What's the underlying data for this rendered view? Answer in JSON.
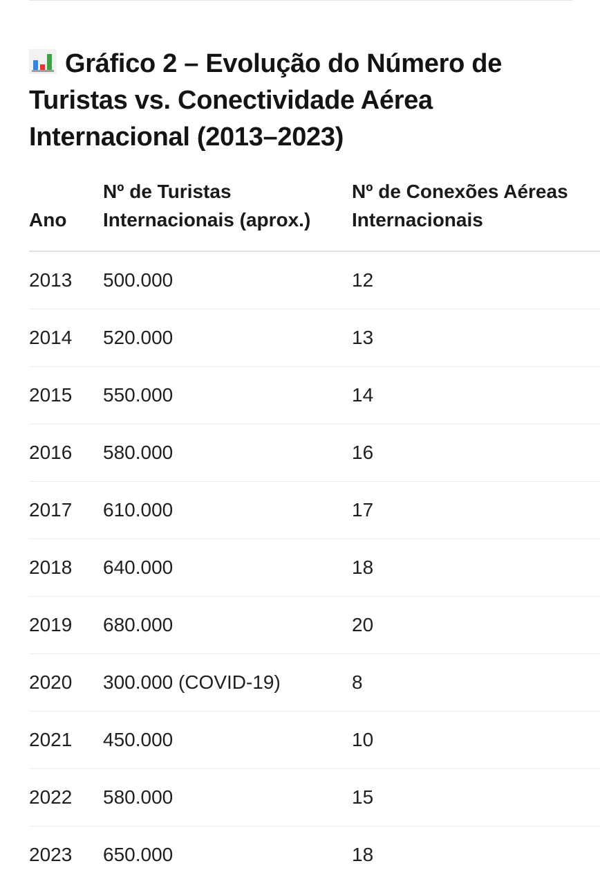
{
  "heading": {
    "icon": "bar-chart-icon",
    "title": "Gráfico 2 – Evolução do Número de Turistas vs. Conectividade Aérea Internacional (2013–2023)"
  },
  "table": {
    "headers": {
      "year": "Ano",
      "tourists": "Nº de Turistas Internacionais (aprox.)",
      "connections": "Nº de Conexões Aéreas Internacionais"
    },
    "rows": [
      {
        "year": "2013",
        "tourists": "500.000",
        "connections": "12"
      },
      {
        "year": "2014",
        "tourists": "520.000",
        "connections": "13"
      },
      {
        "year": "2015",
        "tourists": "550.000",
        "connections": "14"
      },
      {
        "year": "2016",
        "tourists": "580.000",
        "connections": "16"
      },
      {
        "year": "2017",
        "tourists": "610.000",
        "connections": "17"
      },
      {
        "year": "2018",
        "tourists": "640.000",
        "connections": "18"
      },
      {
        "year": "2019",
        "tourists": "680.000",
        "connections": "20"
      },
      {
        "year": "2020",
        "tourists": "300.000 (COVID-19)",
        "connections": "8"
      },
      {
        "year": "2021",
        "tourists": "450.000",
        "connections": "10"
      },
      {
        "year": "2022",
        "tourists": "580.000",
        "connections": "15"
      },
      {
        "year": "2023",
        "tourists": "650.000",
        "connections": "18"
      }
    ]
  },
  "colors": {
    "icon_bar_1": "#3b82d8",
    "icon_bar_2": "#e53935",
    "icon_bar_3": "#43a047"
  }
}
